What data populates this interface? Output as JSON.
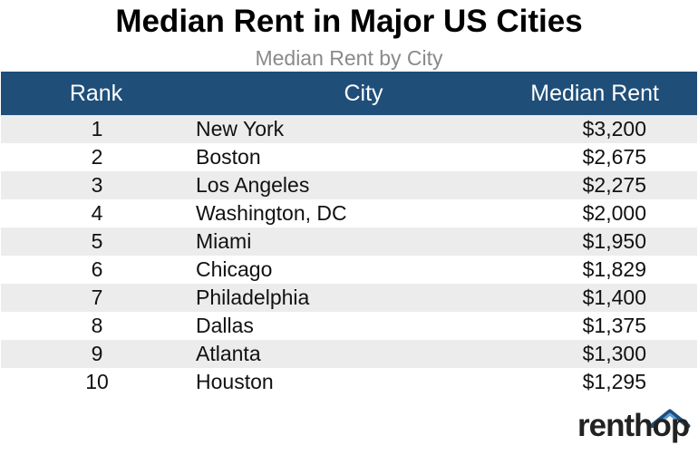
{
  "title": "Median Rent in Major US Cities",
  "subtitle": "Median Rent by City",
  "brand": {
    "name": "renthop",
    "logo_color": "#1f4e79",
    "logo_accent": "#5b9bd5"
  },
  "colors": {
    "header_bg": "#1f4e79",
    "header_text": "#ffffff",
    "stripe_bg": "#ececec",
    "subtitle_text": "#8a8a8a"
  },
  "chart_data": {
    "type": "table",
    "title": "Median Rent in Major US Cities",
    "subtitle": "Median Rent by City",
    "columns": [
      "Rank",
      "City",
      "Median Rent"
    ],
    "rows": [
      {
        "rank": "1",
        "city": "New York",
        "rent": "$3,200"
      },
      {
        "rank": "2",
        "city": "Boston",
        "rent": "$2,675"
      },
      {
        "rank": "3",
        "city": "Los Angeles",
        "rent": "$2,275"
      },
      {
        "rank": "4",
        "city": "Washington, DC",
        "rent": "$2,000"
      },
      {
        "rank": "5",
        "city": "Miami",
        "rent": "$1,950"
      },
      {
        "rank": "6",
        "city": "Chicago",
        "rent": "$1,829"
      },
      {
        "rank": "7",
        "city": "Philadelphia",
        "rent": "$1,400"
      },
      {
        "rank": "8",
        "city": "Dallas",
        "rent": "$1,375"
      },
      {
        "rank": "9",
        "city": "Atlanta",
        "rent": "$1,300"
      },
      {
        "rank": "10",
        "city": "Houston",
        "rent": "$1,295"
      }
    ]
  }
}
